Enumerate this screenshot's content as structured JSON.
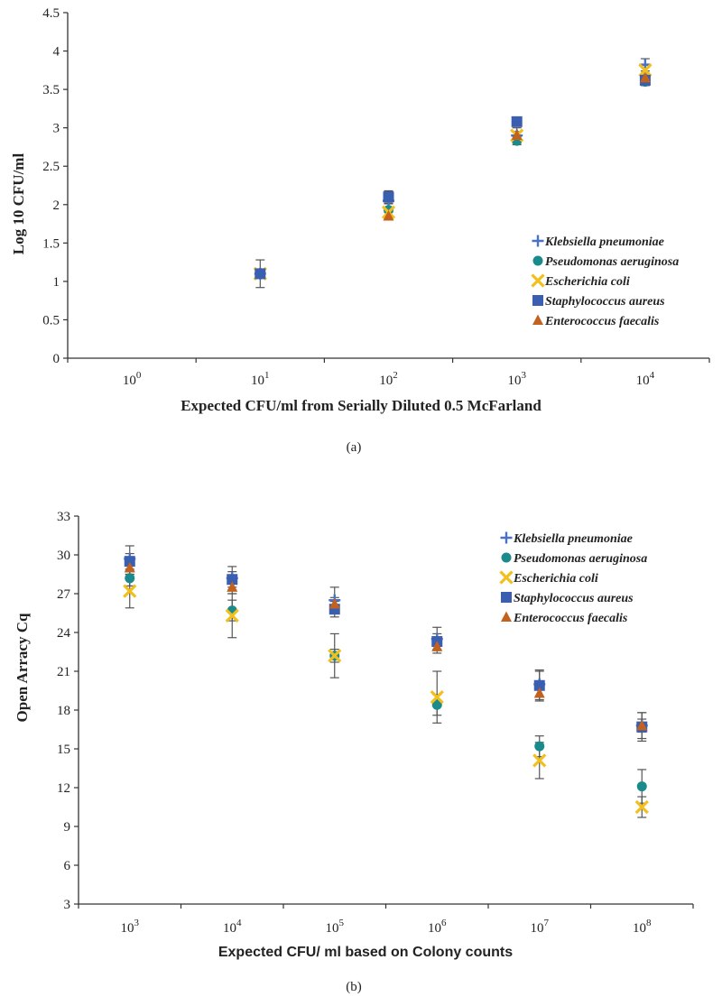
{
  "colors": {
    "klebsiella": "#4a72c4",
    "pseudomonas": "#1a8a8c",
    "ecoli": "#f2c01e",
    "staph": "#3a5fb0",
    "entero": "#c2621e",
    "errorbar": "#555555",
    "axis": "#333333"
  },
  "chart_data": [
    {
      "type": "scatter",
      "panel_caption": "(a)",
      "xlabel": "Expected CFU/ml from Serially Diluted 0.5 McFarland",
      "ylabel": "Log 10 CFU/ml",
      "ylim": [
        0,
        4.5
      ],
      "yticks": [
        "0",
        "0.5",
        "1",
        "1.5",
        "2",
        "2.5",
        "3",
        "3.5",
        "4",
        "4.5"
      ],
      "xcategories": [
        {
          "base": "10",
          "exp": "0"
        },
        {
          "base": "10",
          "exp": "1"
        },
        {
          "base": "10",
          "exp": "2"
        },
        {
          "base": "10",
          "exp": "3"
        },
        {
          "base": "10",
          "exp": "4"
        }
      ],
      "legend_position": "lower-right",
      "series": [
        {
          "name": "Klebsiella pneumoniae",
          "marker": "plus",
          "color_key": "klebsiella",
          "points": [
            [
              1,
              1.1,
              0.18
            ],
            [
              2,
              2.05,
              0.12
            ],
            [
              3,
              2.9,
              0.1
            ],
            [
              4,
              3.82,
              0.08
            ]
          ]
        },
        {
          "name": "Pseudomonas aeruginosa",
          "marker": "circle",
          "color_key": "pseudomonas",
          "points": [
            [
              1,
              1.1,
              0
            ],
            [
              2,
              1.93,
              0.08
            ],
            [
              3,
              2.83,
              0.05
            ],
            [
              4,
              3.6,
              0.05
            ]
          ]
        },
        {
          "name": "Escherichia coli",
          "marker": "x",
          "color_key": "ecoli",
          "points": [
            [
              1,
              1.1,
              0
            ],
            [
              2,
              1.9,
              0.05
            ],
            [
              3,
              2.9,
              0.05
            ],
            [
              4,
              3.75,
              0.08
            ]
          ]
        },
        {
          "name": "Staphylococcus aureus",
          "marker": "square",
          "color_key": "staph",
          "points": [
            [
              1,
              1.1,
              0
            ],
            [
              2,
              2.1,
              0.08
            ],
            [
              3,
              3.08,
              0.05
            ],
            [
              4,
              3.62,
              0.05
            ]
          ]
        },
        {
          "name": "Enterococcus faecalis",
          "marker": "triangle",
          "color_key": "entero",
          "points": [
            [
              2,
              1.85,
              0.05
            ],
            [
              3,
              2.9,
              0.05
            ],
            [
              4,
              3.65,
              0.05
            ]
          ]
        }
      ]
    },
    {
      "type": "scatter",
      "panel_caption": "(b)",
      "xlabel": "Expected CFU/ ml based on Colony counts",
      "ylabel": "Open Arracy Cq",
      "ylim": [
        3,
        33
      ],
      "yticks": [
        "3",
        "6",
        "9",
        "12",
        "15",
        "18",
        "21",
        "24",
        "27",
        "30",
        "33"
      ],
      "xcategories": [
        {
          "base": "10",
          "exp": "3"
        },
        {
          "base": "10",
          "exp": "4"
        },
        {
          "base": "10",
          "exp": "5"
        },
        {
          "base": "10",
          "exp": "6"
        },
        {
          "base": "10",
          "exp": "7"
        },
        {
          "base": "10",
          "exp": "8"
        }
      ],
      "legend_position": "top-right",
      "series": [
        {
          "name": "Klebsiella pneumoniae",
          "marker": "plus",
          "color_key": "klebsiella",
          "points": [
            [
              0,
              29.7,
              1.0
            ],
            [
              1,
              28.2,
              0.9
            ],
            [
              2,
              26.5,
              1.0
            ],
            [
              3,
              23.5,
              0.9
            ],
            [
              4,
              20.0,
              1.0
            ],
            [
              5,
              16.8,
              1.0
            ]
          ]
        },
        {
          "name": "Pseudomonas aeruginosa",
          "marker": "circle",
          "color_key": "pseudomonas",
          "points": [
            [
              0,
              28.2,
              0.6
            ],
            [
              1,
              25.7,
              0.8
            ],
            [
              2,
              22.2,
              1.7
            ],
            [
              3,
              18.4,
              0.8
            ],
            [
              4,
              15.2,
              0.8
            ],
            [
              5,
              12.1,
              1.3
            ]
          ]
        },
        {
          "name": "Escherichia coli",
          "marker": "x",
          "color_key": "ecoli",
          "points": [
            [
              0,
              27.2,
              1.3
            ],
            [
              1,
              25.3,
              1.7
            ],
            [
              2,
              22.2,
              0.5
            ],
            [
              3,
              19.0,
              2.0
            ],
            [
              4,
              14.1,
              1.4
            ],
            [
              5,
              10.5,
              0.8
            ]
          ]
        },
        {
          "name": "Staphylococcus aureus",
          "marker": "square",
          "color_key": "staph",
          "points": [
            [
              0,
              29.5,
              0.6
            ],
            [
              1,
              28.1,
              0.6
            ],
            [
              2,
              25.8,
              0.6
            ],
            [
              3,
              23.3,
              0.6
            ],
            [
              4,
              19.9,
              1.2
            ],
            [
              5,
              16.7,
              1.1
            ]
          ]
        },
        {
          "name": "Enterococcus faecalis",
          "marker": "triangle",
          "color_key": "entero",
          "points": [
            [
              0,
              29.0,
              0.5
            ],
            [
              1,
              27.5,
              0.5
            ],
            [
              2,
              26.2,
              0.5
            ],
            [
              3,
              22.9,
              0.5
            ],
            [
              4,
              19.3,
              0.5
            ],
            [
              5,
              16.8,
              0.5
            ]
          ]
        }
      ]
    }
  ]
}
